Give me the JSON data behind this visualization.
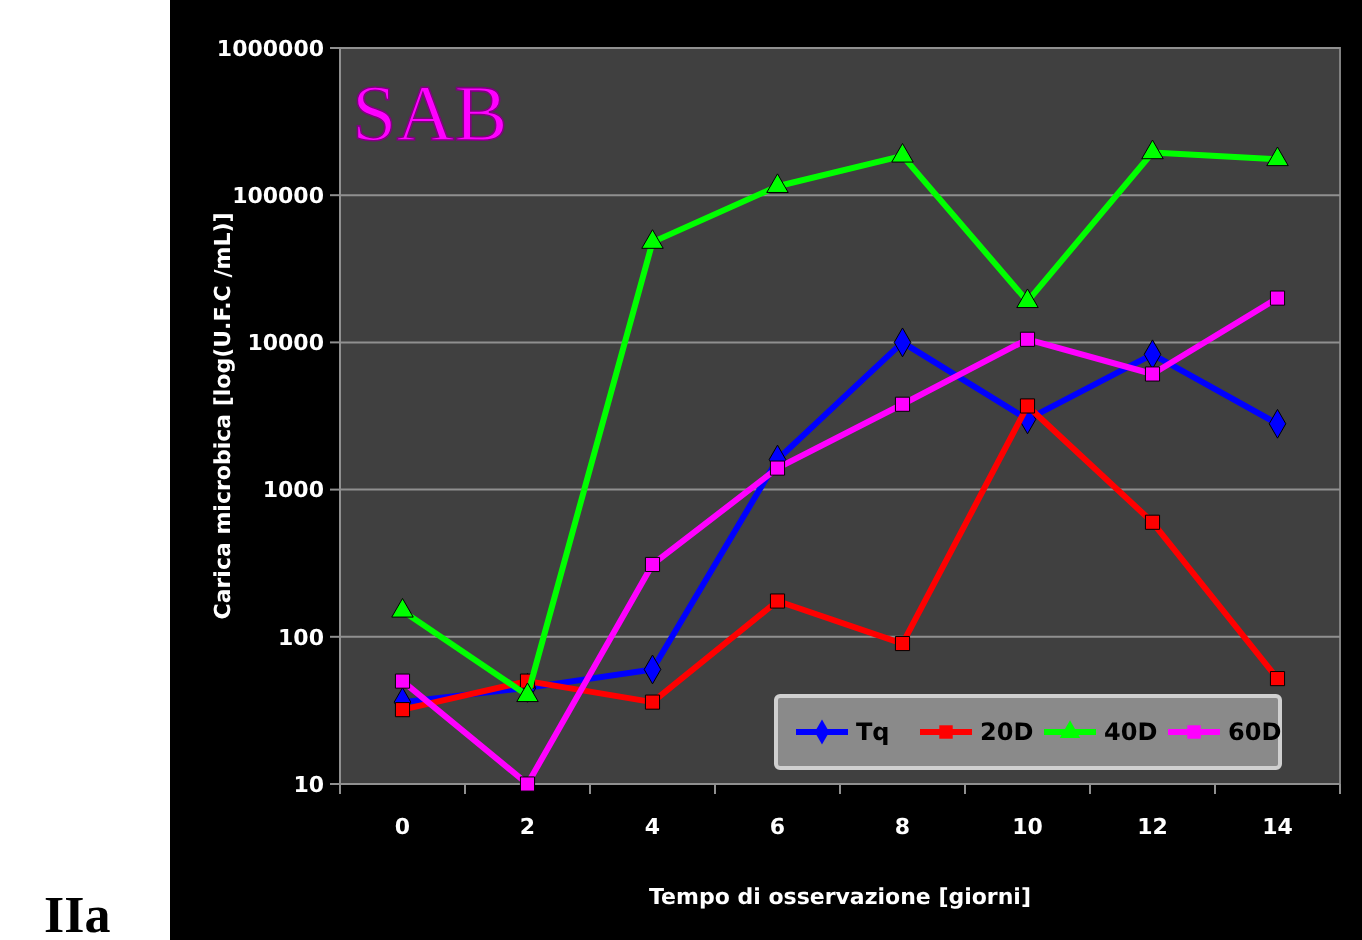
{
  "chart_data": {
    "type": "line",
    "title": "SAB",
    "xlabel": "Tempo di osservazione [giorni]",
    "ylabel": "Carica microbica [log(U.F.C /mL)]",
    "annotations": [
      "IIa"
    ],
    "categories": [
      "0",
      "2",
      "4",
      "6",
      "8",
      "10",
      "12",
      "14"
    ],
    "series": [
      {
        "name": "Tq",
        "color": "#0000ff",
        "marker": "diamond",
        "values": [
          36,
          45,
          60,
          1600,
          10000,
          3000,
          8300,
          2800
        ]
      },
      {
        "name": "20D",
        "color": "#ff0000",
        "marker": "square",
        "values": [
          32,
          50,
          36,
          175,
          90,
          3700,
          600,
          52
        ]
      },
      {
        "name": "40D",
        "color": "#00ff00",
        "marker": "triangle",
        "values": [
          150,
          40,
          48000,
          115000,
          185000,
          19000,
          195000,
          175000
        ]
      },
      {
        "name": "60D",
        "color": "#ff00ff",
        "marker": "square",
        "values": [
          50,
          10,
          310,
          1400,
          3800,
          10500,
          6100,
          20000
        ]
      }
    ],
    "log": true,
    "ylim": [
      10,
      1000000
    ],
    "yticks": [
      10,
      100,
      1000,
      10000,
      100000,
      1000000
    ],
    "grid": "y",
    "legend": "bottom right"
  }
}
